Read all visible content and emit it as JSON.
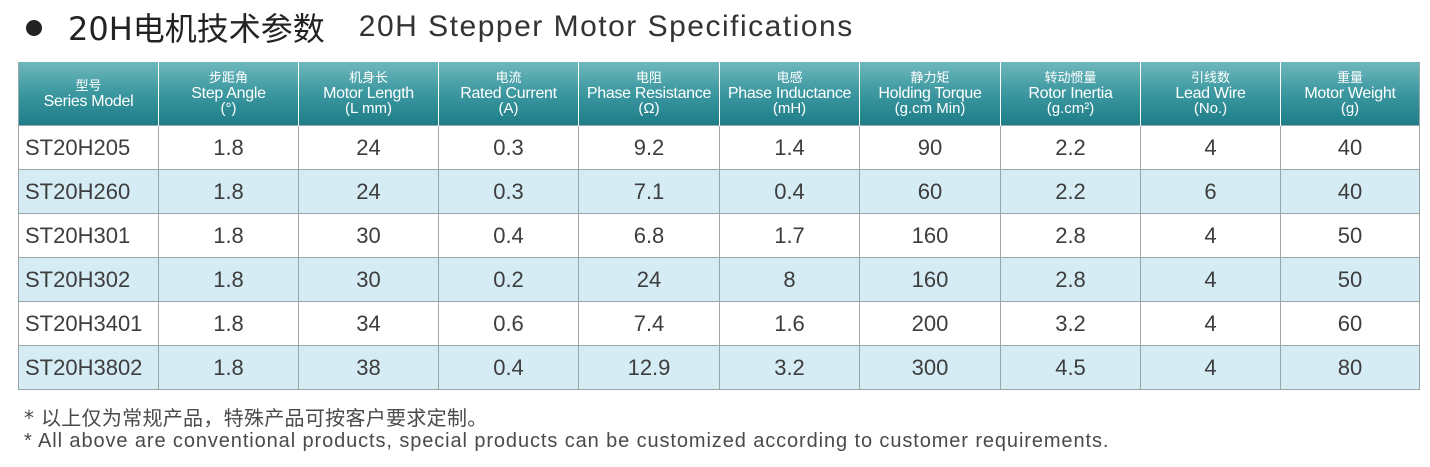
{
  "title": {
    "cn": "20H电机技术参数",
    "en": "20H Stepper Motor Specifications"
  },
  "table": {
    "columns": [
      {
        "cn": "型号",
        "en": "Series Model",
        "unit": ""
      },
      {
        "cn": "步距角",
        "en": "Step Angle",
        "unit": "(°)"
      },
      {
        "cn": "机身长",
        "en": "Motor Length",
        "unit": "(L mm)"
      },
      {
        "cn": "电流",
        "en": "Rated Current",
        "unit": "(A)"
      },
      {
        "cn": "电阻",
        "en": "Phase Resistance",
        "unit": "(Ω)"
      },
      {
        "cn": "电感",
        "en": "Phase Inductance",
        "unit": "(mH)"
      },
      {
        "cn": "静力矩",
        "en": "Holding Torque",
        "unit": "(g.cm Min)"
      },
      {
        "cn": "转动惯量",
        "en": "Rotor Inertia",
        "unit": "(g.cm²)"
      },
      {
        "cn": "引线数",
        "en": "Lead Wire",
        "unit": "(No.)"
      },
      {
        "cn": "重量",
        "en": "Motor Weight",
        "unit": "(g)"
      }
    ],
    "rows": [
      [
        "ST20H205",
        "1.8",
        "24",
        "0.3",
        "9.2",
        "1.4",
        "90",
        "2.2",
        "4",
        "40"
      ],
      [
        "ST20H260",
        "1.8",
        "24",
        "0.3",
        "7.1",
        "0.4",
        "60",
        "2.2",
        "6",
        "40"
      ],
      [
        "ST20H301",
        "1.8",
        "30",
        "0.4",
        "6.8",
        "1.7",
        "160",
        "2.8",
        "4",
        "50"
      ],
      [
        "ST20H302",
        "1.8",
        "30",
        "0.2",
        "24",
        "8",
        "160",
        "2.8",
        "4",
        "50"
      ],
      [
        "ST20H3401",
        "1.8",
        "34",
        "0.6",
        "7.4",
        "1.6",
        "200",
        "3.2",
        "4",
        "60"
      ],
      [
        "ST20H3802",
        "1.8",
        "38",
        "0.4",
        "12.9",
        "3.2",
        "300",
        "4.5",
        "4",
        "80"
      ]
    ]
  },
  "footnotes": {
    "cn": "* 以上仅为常规产品，特殊产品可按客户要求定制。",
    "en": "* All above are conventional products, special products can be customized according to customer requirements."
  },
  "colors": {
    "header_top": "#6fb8bd",
    "header_bottom": "#1e7d88",
    "alt_row": "#d6ecf4",
    "grid": "#9aa5a7"
  }
}
